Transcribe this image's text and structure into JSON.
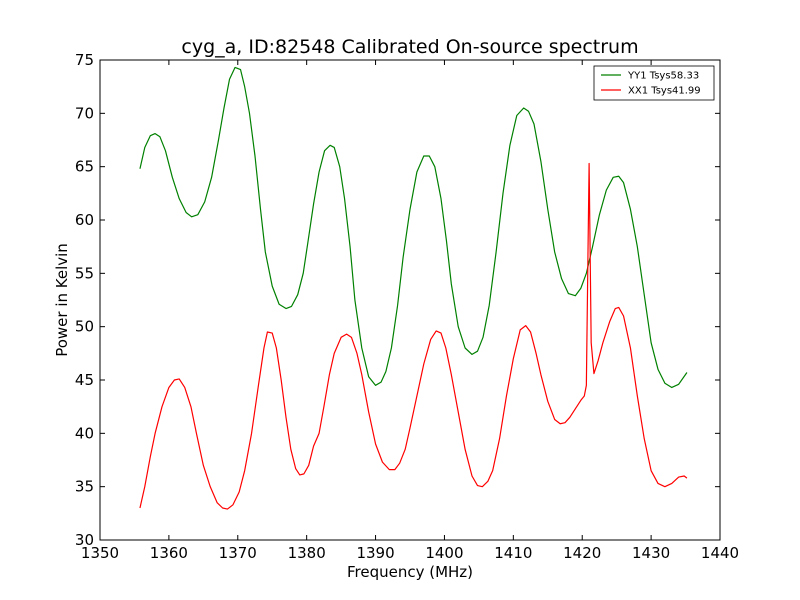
{
  "chart_data": {
    "type": "line",
    "title": "cyg_a, ID:82548 Calibrated On-source spectrum",
    "xlabel": "Frequency (MHz)",
    "ylabel": "Power in Kelvin",
    "xlim": [
      1350,
      1440
    ],
    "ylim": [
      30,
      75
    ],
    "xticks": [
      1350,
      1360,
      1370,
      1380,
      1390,
      1400,
      1410,
      1420,
      1430,
      1440
    ],
    "yticks": [
      30,
      35,
      40,
      45,
      50,
      55,
      60,
      65,
      70,
      75
    ],
    "grid": false,
    "legend_position": "top-right",
    "series": [
      {
        "name": "YY1 Tsys58.33",
        "color": "#008000",
        "x": [
          1355.8,
          1356.5,
          1357.3,
          1358.0,
          1358.7,
          1359.5,
          1360.5,
          1361.5,
          1362.5,
          1363.3,
          1364.2,
          1365.2,
          1366.2,
          1367.2,
          1368.0,
          1368.8,
          1369.6,
          1370.4,
          1371.0,
          1371.7,
          1372.5,
          1373.3,
          1374.0,
          1375.0,
          1376.0,
          1377.0,
          1377.8,
          1378.7,
          1379.5,
          1380.2,
          1381.0,
          1381.8,
          1382.6,
          1383.4,
          1384.0,
          1384.8,
          1385.5,
          1386.3,
          1387.0,
          1388.0,
          1389.0,
          1390.0,
          1390.8,
          1391.5,
          1392.3,
          1393.2,
          1394.0,
          1395.0,
          1396.0,
          1397.0,
          1397.8,
          1398.6,
          1399.5,
          1400.3,
          1401.0,
          1402.0,
          1403.0,
          1404.0,
          1404.8,
          1405.6,
          1406.5,
          1407.5,
          1408.5,
          1409.5,
          1410.5,
          1411.5,
          1412.2,
          1413.0,
          1414.0,
          1415.0,
          1416.0,
          1417.0,
          1418.0,
          1419.0,
          1419.8,
          1420.6,
          1421.5,
          1422.5,
          1423.5,
          1424.5,
          1425.3,
          1426.0,
          1427.0,
          1428.0,
          1429.0,
          1430.0,
          1431.0,
          1432.0,
          1433.0,
          1434.0,
          1435.2
        ],
        "y": [
          64.8,
          66.8,
          67.9,
          68.1,
          67.8,
          66.5,
          64.0,
          62.0,
          60.7,
          60.3,
          60.5,
          61.7,
          64.0,
          67.5,
          70.5,
          73.2,
          74.3,
          74.1,
          72.5,
          70.0,
          66.0,
          61.0,
          57.0,
          53.8,
          52.1,
          51.7,
          51.9,
          53.0,
          55.0,
          58.0,
          61.5,
          64.5,
          66.5,
          67.0,
          66.8,
          65.0,
          62.0,
          57.5,
          52.5,
          48.0,
          45.3,
          44.5,
          44.8,
          45.8,
          48.0,
          52.0,
          56.5,
          61.0,
          64.5,
          66.0,
          66.0,
          65.0,
          62.0,
          58.0,
          54.0,
          50.0,
          48.0,
          47.4,
          47.7,
          49.0,
          52.0,
          57.0,
          62.5,
          67.0,
          69.8,
          70.5,
          70.2,
          69.0,
          65.5,
          61.0,
          57.0,
          54.5,
          53.1,
          52.9,
          53.6,
          55.0,
          57.5,
          60.5,
          62.8,
          64.0,
          64.1,
          63.5,
          61.0,
          57.5,
          53.0,
          48.5,
          46.0,
          44.7,
          44.3,
          44.6,
          45.7
        ]
      },
      {
        "name": "XX1 Tsys41.99",
        "color": "#ff0000",
        "x": [
          1355.8,
          1356.5,
          1357.3,
          1358.0,
          1359.0,
          1360.0,
          1360.8,
          1361.5,
          1362.3,
          1363.2,
          1364.0,
          1365.0,
          1366.0,
          1367.0,
          1367.8,
          1368.5,
          1369.3,
          1370.2,
          1371.0,
          1372.0,
          1373.0,
          1373.8,
          1374.3,
          1375.0,
          1375.6,
          1376.3,
          1377.0,
          1377.7,
          1378.4,
          1379.0,
          1379.6,
          1380.3,
          1381.0,
          1381.8,
          1382.5,
          1383.3,
          1384.0,
          1385.0,
          1385.8,
          1386.5,
          1387.3,
          1388.0,
          1389.0,
          1390.0,
          1391.0,
          1392.0,
          1392.8,
          1393.5,
          1394.3,
          1395.0,
          1396.0,
          1397.0,
          1398.0,
          1398.8,
          1399.5,
          1400.2,
          1401.0,
          1402.0,
          1403.0,
          1404.0,
          1404.8,
          1405.5,
          1406.3,
          1407.0,
          1408.0,
          1409.0,
          1410.0,
          1411.0,
          1411.8,
          1412.5,
          1413.3,
          1414.0,
          1415.0,
          1416.0,
          1416.8,
          1417.5,
          1418.2,
          1419.0,
          1419.8,
          1420.3,
          1420.6,
          1420.8,
          1421.0,
          1421.3,
          1421.7,
          1422.3,
          1423.0,
          1424.0,
          1424.8,
          1425.3,
          1426.0,
          1427.0,
          1428.0,
          1429.0,
          1430.0,
          1431.0,
          1432.0,
          1433.0,
          1434.0,
          1434.8,
          1435.2
        ],
        "y": [
          33.0,
          35.0,
          37.8,
          40.0,
          42.5,
          44.3,
          45.0,
          45.1,
          44.3,
          42.5,
          40.0,
          37.0,
          35.0,
          33.5,
          33.0,
          32.9,
          33.3,
          34.5,
          36.5,
          40.0,
          44.5,
          48.0,
          49.5,
          49.4,
          48.0,
          45.0,
          41.5,
          38.5,
          36.7,
          36.1,
          36.2,
          37.0,
          38.8,
          40.0,
          42.5,
          45.5,
          47.5,
          49.0,
          49.3,
          49.0,
          47.5,
          45.5,
          42.0,
          39.0,
          37.3,
          36.6,
          36.6,
          37.2,
          38.5,
          40.5,
          43.5,
          46.5,
          48.8,
          49.6,
          49.4,
          48.0,
          45.5,
          42.0,
          38.5,
          36.0,
          35.1,
          35.0,
          35.5,
          36.5,
          39.5,
          43.5,
          47.0,
          49.7,
          50.1,
          49.5,
          47.5,
          45.5,
          43.0,
          41.3,
          40.9,
          41.0,
          41.5,
          42.3,
          43.1,
          43.5,
          44.5,
          55.0,
          65.3,
          48.5,
          45.6,
          46.8,
          48.5,
          50.5,
          51.7,
          51.8,
          51.0,
          48.0,
          43.5,
          39.5,
          36.5,
          35.3,
          35.0,
          35.3,
          35.9,
          36.0,
          35.8
        ]
      }
    ]
  }
}
